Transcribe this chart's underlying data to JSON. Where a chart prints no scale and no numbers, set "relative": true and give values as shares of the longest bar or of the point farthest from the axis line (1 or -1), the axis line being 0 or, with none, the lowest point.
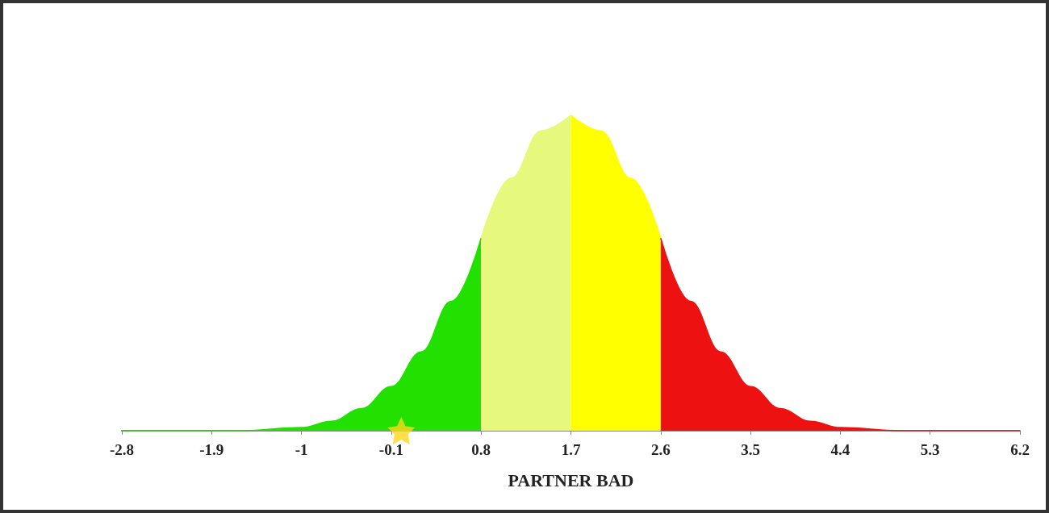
{
  "chart_data": {
    "type": "area",
    "relative": true,
    "xlabel": "PARTNER BAD",
    "xlim": [
      -2.8,
      6.2
    ],
    "xticks": [
      -2.8,
      -1.9,
      -1,
      -0.1,
      0.8,
      1.7,
      2.6,
      3.5,
      4.4,
      5.3,
      6.2
    ],
    "series": [
      {
        "color": "#22e000",
        "x": [
          -2.8,
          -2.2,
          -1.6,
          -1.0,
          -0.7,
          -0.4,
          -0.1,
          0.2,
          0.5,
          0.8
        ],
        "values": [
          0,
          0,
          0,
          0.01,
          0.03,
          0.07,
          0.14,
          0.25,
          0.41,
          0.61
        ]
      },
      {
        "color": "#e6f97c",
        "x": [
          0.8,
          1.1,
          1.4,
          1.7
        ],
        "values": [
          0.61,
          0.8,
          0.95,
          1
        ]
      },
      {
        "color": "#ffff00",
        "x": [
          1.7,
          2.0,
          2.3,
          2.6
        ],
        "values": [
          1,
          0.95,
          0.8,
          0.61
        ]
      },
      {
        "color": "#ee1111",
        "x": [
          2.6,
          2.9,
          3.2,
          3.5,
          3.8,
          4.1,
          4.4,
          5.0,
          6.2
        ],
        "values": [
          0.61,
          0.41,
          0.25,
          0.14,
          0.07,
          0.03,
          0.01,
          0,
          0
        ]
      },
      {
        "type": "scatter",
        "marker": "star",
        "color": "#ffd81a",
        "x": [
          0
        ],
        "values": [
          0
        ]
      }
    ]
  }
}
